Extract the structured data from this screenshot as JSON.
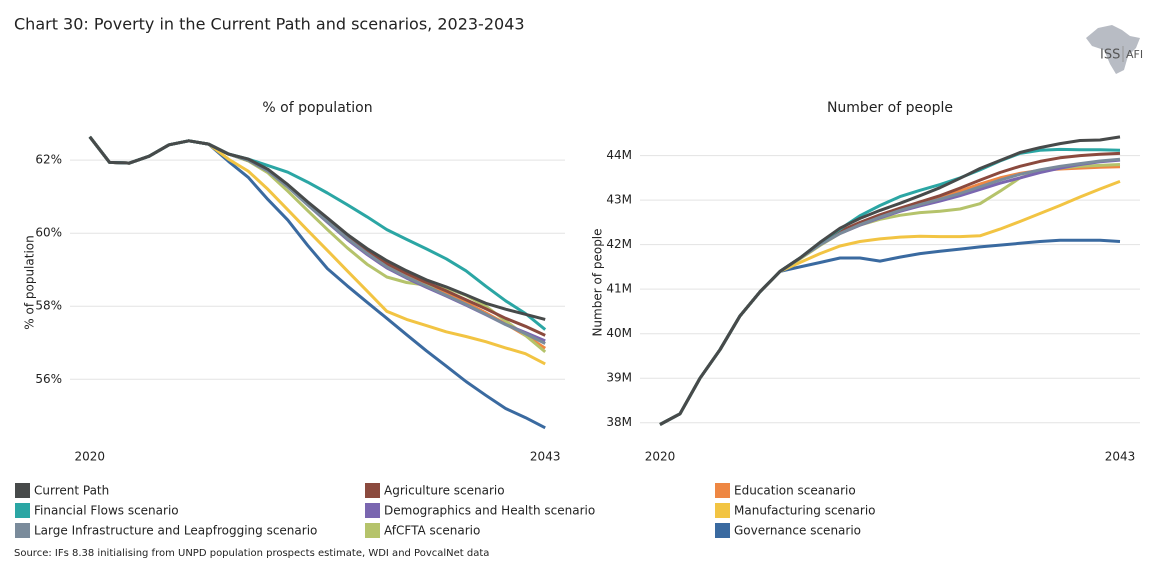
{
  "title": "Chart 30: Poverty in the Current Path and scenarios, 2023-2043",
  "logo": {
    "left": "ISS",
    "right": "AFI"
  },
  "source": "Source: IFs 8.38 initialising from UNPD population prospects estimate, WDI and PovcalNet data",
  "chart_data": [
    {
      "type": "line",
      "title": "% of population",
      "ylabel": "% of population",
      "x": [
        2020,
        2021,
        2022,
        2023,
        2024,
        2025,
        2026,
        2027,
        2028,
        2029,
        2030,
        2031,
        2032,
        2033,
        2034,
        2035,
        2036,
        2037,
        2038,
        2039,
        2040,
        2041,
        2042,
        2043
      ],
      "xlim": [
        2019,
        2044
      ],
      "xticks": [
        2020,
        2043
      ],
      "ylim": [
        54.2,
        63.1
      ],
      "yticks": [
        {
          "value": 56,
          "label": "56%"
        },
        {
          "value": 58,
          "label": "58%"
        },
        {
          "value": 60,
          "label": "60%"
        },
        {
          "value": 62,
          "label": "62%"
        }
      ],
      "grid": true,
      "series": [
        {
          "name": "Current Path",
          "color": "#474a4a",
          "values": [
            62.64,
            61.94,
            61.92,
            62.11,
            62.42,
            62.53,
            62.44,
            62.17,
            62.03,
            61.75,
            61.33,
            60.86,
            60.42,
            59.97,
            59.58,
            59.25,
            58.97,
            58.72,
            58.53,
            58.31,
            58.08,
            57.92,
            57.78,
            57.64
          ]
        },
        {
          "name": "Financial Flows scenario",
          "color": "#2ba6a4",
          "values": [
            62.64,
            61.94,
            61.92,
            62.11,
            62.42,
            62.53,
            62.44,
            62.17,
            62.03,
            61.85,
            61.67,
            61.4,
            61.1,
            60.78,
            60.45,
            60.1,
            59.83,
            59.57,
            59.3,
            58.97,
            58.55,
            58.15,
            57.8,
            57.36
          ]
        },
        {
          "name": "Large Infrastructure and Leapfrogging scenario",
          "color": "#7a8b9b",
          "values": [
            62.64,
            61.94,
            61.92,
            62.11,
            62.42,
            62.53,
            62.44,
            62.17,
            62.0,
            61.7,
            61.27,
            60.78,
            60.32,
            59.86,
            59.45,
            59.08,
            58.8,
            58.55,
            58.3,
            58.05,
            57.78,
            57.5,
            57.25,
            56.98
          ]
        },
        {
          "name": "Agriculture scenario",
          "color": "#8b4a3e",
          "values": [
            62.64,
            61.94,
            61.92,
            62.11,
            62.42,
            62.53,
            62.44,
            62.17,
            62.0,
            61.72,
            61.3,
            60.82,
            60.37,
            59.92,
            59.52,
            59.17,
            58.9,
            58.65,
            58.42,
            58.18,
            57.93,
            57.67,
            57.45,
            57.2
          ]
        },
        {
          "name": "Demographics and Health scenario",
          "color": "#7a66b0",
          "values": [
            62.64,
            61.94,
            61.92,
            62.11,
            62.42,
            62.53,
            62.44,
            62.17,
            62.0,
            61.7,
            61.27,
            60.78,
            60.3,
            59.83,
            59.42,
            59.05,
            58.77,
            58.52,
            58.28,
            58.03,
            57.77,
            57.5,
            57.28,
            57.05
          ]
        },
        {
          "name": "AfCFTA scenario",
          "color": "#b5c36b",
          "values": [
            62.64,
            61.94,
            61.92,
            62.11,
            62.42,
            62.53,
            62.44,
            62.17,
            61.98,
            61.65,
            61.15,
            60.62,
            60.1,
            59.6,
            59.15,
            58.8,
            58.65,
            58.58,
            58.5,
            58.3,
            58.0,
            57.6,
            57.2,
            56.75
          ]
        },
        {
          "name": "Education sceanario",
          "color": "#ee8743",
          "values": [
            62.64,
            61.94,
            61.92,
            62.11,
            62.42,
            62.53,
            62.44,
            62.17,
            62.0,
            61.7,
            61.27,
            60.8,
            60.35,
            59.9,
            59.5,
            59.14,
            58.85,
            58.6,
            58.35,
            58.1,
            57.82,
            57.52,
            57.2,
            56.85
          ]
        },
        {
          "name": "Manufacturing scenario",
          "color": "#f2c443",
          "values": [
            62.64,
            61.94,
            61.92,
            62.11,
            62.42,
            62.53,
            62.44,
            62.03,
            61.7,
            61.2,
            60.64,
            60.08,
            59.53,
            58.97,
            58.42,
            57.86,
            57.64,
            57.47,
            57.3,
            57.17,
            57.03,
            56.86,
            56.7,
            56.42
          ]
        },
        {
          "name": "Governance scenario",
          "color": "#3a6aa0",
          "values": [
            62.64,
            61.94,
            61.92,
            62.11,
            62.42,
            62.53,
            62.44,
            61.97,
            61.53,
            60.92,
            60.36,
            59.67,
            59.03,
            58.56,
            58.11,
            57.67,
            57.22,
            56.78,
            56.36,
            55.94,
            55.56,
            55.2,
            54.95,
            54.67
          ]
        }
      ]
    },
    {
      "type": "line",
      "title": "Number of people",
      "ylabel": "Number of people",
      "x": [
        2020,
        2021,
        2022,
        2023,
        2024,
        2025,
        2026,
        2027,
        2028,
        2029,
        2030,
        2031,
        2032,
        2033,
        2034,
        2035,
        2036,
        2037,
        2038,
        2039,
        2040,
        2041,
        2042,
        2043
      ],
      "xlim": [
        2019,
        2044
      ],
      "xticks": [
        2020,
        2043
      ],
      "ylim": [
        37.5,
        44.8
      ],
      "yticks": [
        {
          "value": 38,
          "label": "38M"
        },
        {
          "value": 39,
          "label": "39M"
        },
        {
          "value": 40,
          "label": "40M"
        },
        {
          "value": 41,
          "label": "41M"
        },
        {
          "value": 42,
          "label": "42M"
        },
        {
          "value": 43,
          "label": "43M"
        },
        {
          "value": 44,
          "label": "44M"
        }
      ],
      "grid": true,
      "series": [
        {
          "name": "Current Path",
          "color": "#474a4a",
          "values": [
            37.96,
            38.2,
            39.0,
            39.64,
            40.4,
            40.94,
            41.4,
            41.7,
            42.05,
            42.37,
            42.59,
            42.77,
            42.93,
            43.1,
            43.28,
            43.49,
            43.71,
            43.89,
            44.07,
            44.18,
            44.27,
            44.34,
            44.35,
            44.42
          ]
        },
        {
          "name": "Financial Flows scenario",
          "color": "#2ba6a4",
          "values": [
            37.96,
            38.2,
            39.0,
            39.64,
            40.4,
            40.94,
            41.4,
            41.7,
            42.05,
            42.35,
            42.65,
            42.88,
            43.08,
            43.22,
            43.35,
            43.5,
            43.68,
            43.88,
            44.05,
            44.12,
            44.14,
            44.13,
            44.13,
            44.12
          ]
        },
        {
          "name": "Large Infrastructure and Leapfrogging scenario",
          "color": "#7a8b9b",
          "values": [
            37.96,
            38.2,
            39.0,
            39.64,
            40.4,
            40.94,
            41.4,
            41.7,
            42.0,
            42.25,
            42.45,
            42.62,
            42.77,
            42.9,
            43.02,
            43.15,
            43.3,
            43.45,
            43.58,
            43.68,
            43.76,
            43.82,
            43.88,
            43.92
          ]
        },
        {
          "name": "Agriculture scenario",
          "color": "#8b4a3e",
          "values": [
            37.96,
            38.2,
            39.0,
            39.64,
            40.4,
            40.94,
            41.4,
            41.7,
            42.02,
            42.3,
            42.5,
            42.67,
            42.82,
            42.96,
            43.1,
            43.27,
            43.45,
            43.62,
            43.76,
            43.87,
            43.95,
            44.0,
            44.03,
            44.05
          ]
        },
        {
          "name": "Demographics and Health scenario",
          "color": "#7a66b0",
          "values": [
            37.96,
            38.2,
            39.0,
            39.64,
            40.4,
            40.94,
            41.4,
            41.7,
            42.0,
            42.25,
            42.44,
            42.6,
            42.75,
            42.87,
            42.98,
            43.1,
            43.24,
            43.38,
            43.5,
            43.62,
            43.72,
            43.8,
            43.86,
            43.9
          ]
        },
        {
          "name": "AfCFTA scenario",
          "color": "#b5c36b",
          "values": [
            37.96,
            38.2,
            39.0,
            39.64,
            40.4,
            40.94,
            41.4,
            41.68,
            41.98,
            42.25,
            42.44,
            42.57,
            42.66,
            42.72,
            42.75,
            42.8,
            42.92,
            43.2,
            43.5,
            43.65,
            43.72,
            43.76,
            43.78,
            43.8
          ]
        },
        {
          "name": "Education sceanario",
          "color": "#ee8743",
          "values": [
            37.96,
            38.2,
            39.0,
            39.64,
            40.4,
            40.94,
            41.4,
            41.7,
            42.0,
            42.27,
            42.47,
            42.63,
            42.78,
            42.92,
            43.06,
            43.2,
            43.36,
            43.5,
            43.6,
            43.67,
            43.7,
            43.72,
            43.74,
            43.75
          ]
        },
        {
          "name": "Manufacturing scenario",
          "color": "#f2c443",
          "values": [
            37.96,
            38.2,
            39.0,
            39.64,
            40.4,
            40.94,
            41.4,
            41.6,
            41.8,
            41.97,
            42.07,
            42.13,
            42.17,
            42.19,
            42.18,
            42.18,
            42.2,
            42.35,
            42.52,
            42.7,
            42.88,
            43.07,
            43.25,
            43.42
          ]
        },
        {
          "name": "Governance scenario",
          "color": "#3a6aa0",
          "values": [
            37.96,
            38.2,
            39.0,
            39.64,
            40.4,
            40.94,
            41.4,
            41.5,
            41.6,
            41.7,
            41.7,
            41.63,
            41.72,
            41.8,
            41.85,
            41.9,
            41.95,
            41.99,
            42.03,
            42.07,
            42.1,
            42.1,
            42.1,
            42.07
          ]
        }
      ]
    }
  ]
}
